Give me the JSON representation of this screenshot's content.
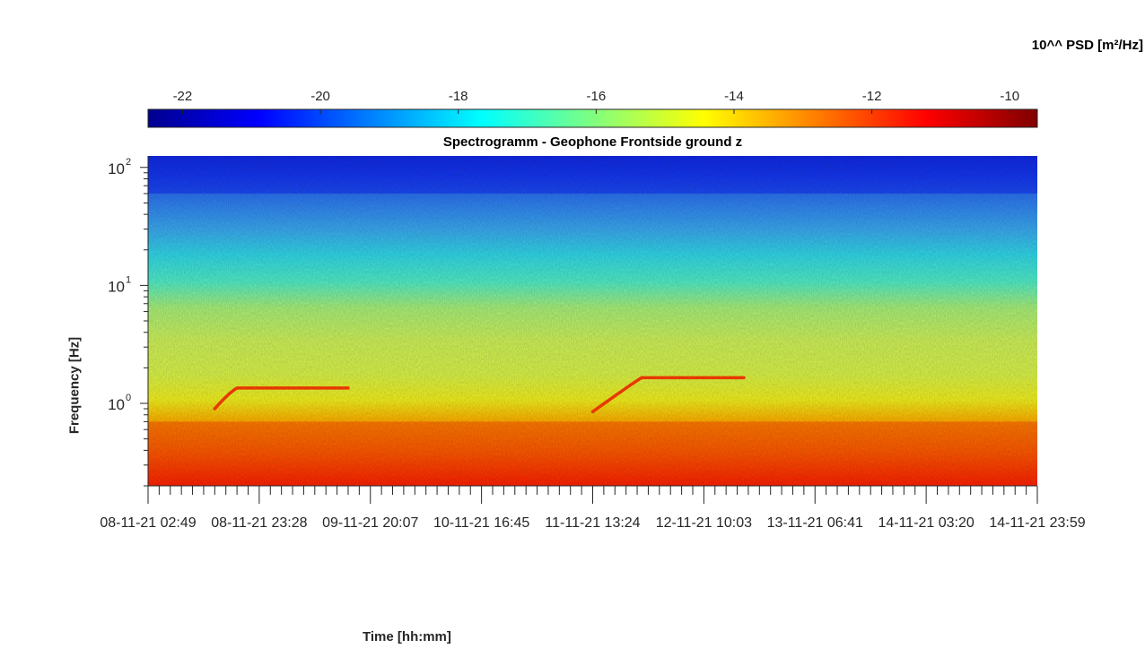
{
  "chart_data": {
    "type": "heatmap",
    "title": "Spectrogramm - Geophone Frontside ground z",
    "xlabel": "Time [hh:mm]",
    "ylabel": "Frequency [Hz]",
    "colorbar": {
      "label": "10^^ PSD [m²/Hz]",
      "ticks": [
        -22,
        -20,
        -18,
        -16,
        -14,
        -12,
        -10
      ],
      "range": [
        -22.5,
        -9.6
      ],
      "colormap": "jet"
    },
    "yscale": "log",
    "ylim": [
      0.2,
      125
    ],
    "y_ticks": [
      {
        "value": 1,
        "label": "10",
        "exp": "0"
      },
      {
        "value": 10,
        "label": "10",
        "exp": "1"
      },
      {
        "value": 100,
        "label": "10",
        "exp": "2"
      }
    ],
    "x_ticks": [
      "08-11-21  02:49",
      "08-11-21  23:28",
      "09-11-21  20:07",
      "10-11-21  16:45",
      "11-11-21  13:24",
      "12-11-21  10:03",
      "13-11-21  06:41",
      "14-11-21  03:20",
      "14-11-21  23:59"
    ],
    "features": [
      {
        "name": "low-frequency band",
        "freq_range_hz": [
          0.2,
          0.7
        ],
        "log_psd": -11.5
      },
      {
        "name": "tonal line 1",
        "freq_start_hz": 0.9,
        "freq_end_hz": 1.35,
        "log_psd": -12
      },
      {
        "name": "tonal line 2",
        "freq_start_hz": 0.85,
        "freq_end_hz": 1.65,
        "log_psd": -12
      },
      {
        "name": "high-frequency band",
        "freq_range_hz": [
          60,
          125
        ],
        "log_psd": -21
      }
    ]
  }
}
